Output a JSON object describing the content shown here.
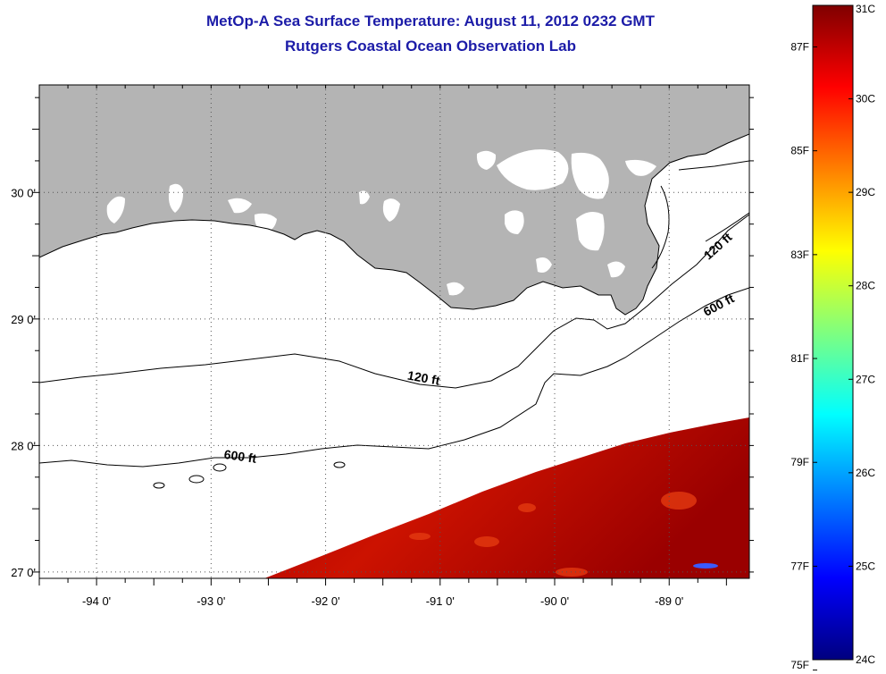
{
  "title": "MetOp-A Sea Surface Temperature:  August 11, 2012 0232 GMT",
  "subtitle": "Rutgers Coastal Ocean Observation Lab",
  "map": {
    "lon_range": [
      -94.5,
      -88.3
    ],
    "lat_range": [
      26.95,
      30.85
    ],
    "lon_ticks": [
      {
        "value": -94,
        "label": "-94 0'"
      },
      {
        "value": -93,
        "label": "-93 0'"
      },
      {
        "value": -92,
        "label": "-92 0'"
      },
      {
        "value": -91,
        "label": "-91 0'"
      },
      {
        "value": -90,
        "label": "-90 0'"
      },
      {
        "value": -89,
        "label": "-89 0'"
      }
    ],
    "lat_ticks": [
      {
        "value": 30,
        "label": "30 0'"
      },
      {
        "value": 29,
        "label": "29 0'"
      },
      {
        "value": 28,
        "label": "28 0'"
      },
      {
        "value": 27,
        "label": "27 0'"
      }
    ],
    "land_color": "#b4b4b4",
    "contours": [
      {
        "label": "120 ft",
        "lon": -91.15,
        "lat": 28.5,
        "angle": 10
      },
      {
        "label": "600 ft",
        "lon": -92.75,
        "lat": 27.88,
        "angle": 8
      },
      {
        "label": "120 ft",
        "lon": -88.55,
        "lat": 29.55,
        "angle": -42
      },
      {
        "label": "600 ft",
        "lon": -88.55,
        "lat": 29.08,
        "angle": -28
      }
    ]
  },
  "colorbar": {
    "colors": [
      "#00007f",
      "#0000ff",
      "#007fff",
      "#00ffff",
      "#7fff7f",
      "#ffff00",
      "#ff7f00",
      "#ff0000",
      "#7f0000"
    ],
    "celsius_ticks": [
      {
        "value": 31,
        "label": "31C"
      },
      {
        "value": 30,
        "label": "30C"
      },
      {
        "value": 29,
        "label": "29C"
      },
      {
        "value": 28,
        "label": "28C"
      },
      {
        "value": 27,
        "label": "27C"
      },
      {
        "value": 26,
        "label": "26C"
      },
      {
        "value": 25,
        "label": "25C"
      },
      {
        "value": 24,
        "label": "24C"
      }
    ],
    "fahrenheit_ticks": [
      {
        "value": 87,
        "label": "87F"
      },
      {
        "value": 85,
        "label": "85F"
      },
      {
        "value": 83,
        "label": "83F"
      },
      {
        "value": 81,
        "label": "81F"
      },
      {
        "value": 79,
        "label": "79F"
      },
      {
        "value": 77,
        "label": "77F"
      },
      {
        "value": 75,
        "label": "75F"
      }
    ]
  }
}
